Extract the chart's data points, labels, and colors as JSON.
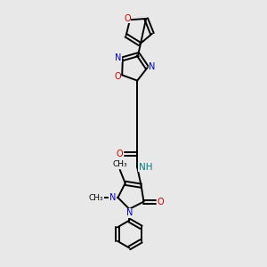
{
  "bg_color": "#e8e8e8",
  "bond_color": "#000000",
  "N_color": "#0000cc",
  "O_color": "#cc0000",
  "NH_color": "#008080",
  "line_width": 1.4,
  "figsize": [
    3.0,
    3.0
  ],
  "dpi": 100,
  "xlim": [
    0,
    10
  ],
  "ylim": [
    0,
    10
  ]
}
